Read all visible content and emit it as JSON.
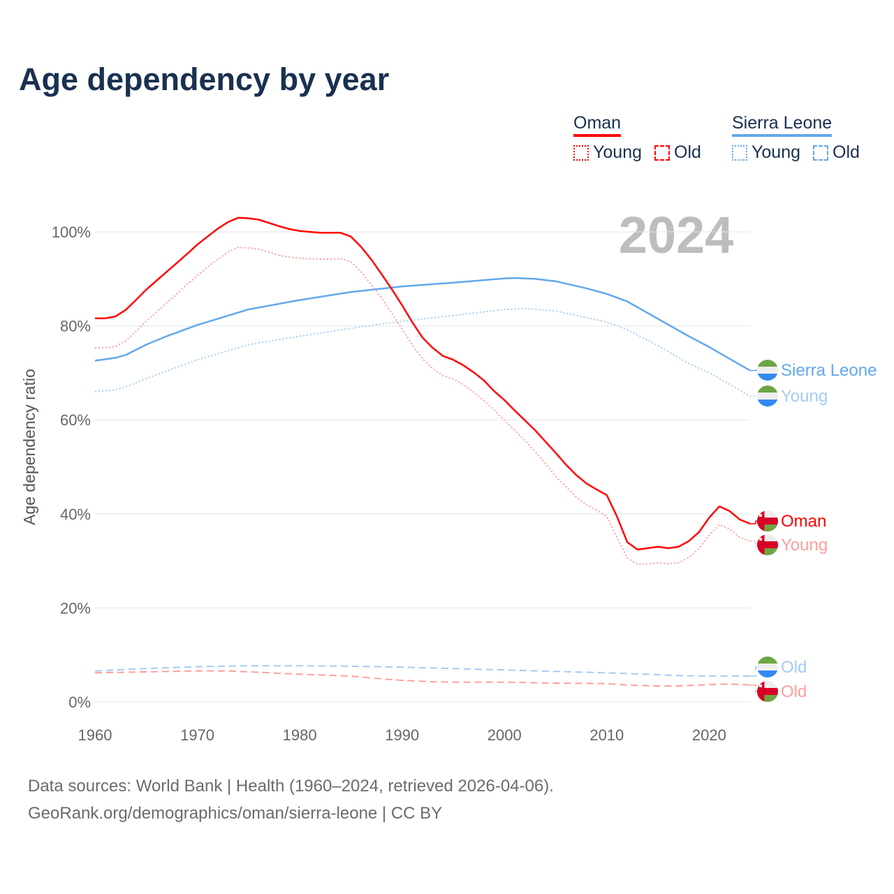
{
  "title": "Age dependency by year",
  "legend": {
    "groups": [
      {
        "name": "Oman",
        "color": "#ff0000",
        "items": [
          "Young",
          "Old"
        ]
      },
      {
        "name": "Sierra Leone",
        "color": "#62a8ec",
        "items": [
          "Young",
          "Old"
        ]
      }
    ]
  },
  "year_badge": "2024",
  "footer": {
    "line1": "Data sources: World Bank | Health (1960–2024, retrieved 2026-04-06).",
    "line2": "GeoRank.org/demographics/oman/sierra-leone | CC BY"
  },
  "chart_data": {
    "type": "line",
    "title": "Age dependency by year",
    "xlabel": "",
    "ylabel": "Age dependency ratio",
    "xlim": [
      1960,
      2024
    ],
    "ylim": [
      0,
      105
    ],
    "xticks": [
      "1960",
      "1970",
      "1980",
      "1990",
      "2000",
      "2010",
      "2020"
    ],
    "yticks": [
      "0%",
      "20%",
      "40%",
      "60%",
      "80%",
      "100%"
    ],
    "grid": true,
    "series": [
      {
        "name": "Sierra Leone",
        "end_label": "Sierra Leone",
        "color": "#62a8ec",
        "style": "solid",
        "width": 2.5,
        "x": [
          1960,
          1962,
          1963,
          1965,
          1967,
          1970,
          1975,
          1980,
          1985,
          1990,
          1995,
          2000,
          2001,
          2003,
          2005,
          2008,
          2010,
          2012,
          2015,
          2018,
          2020,
          2022,
          2024
        ],
        "y": [
          72.6,
          73.2,
          73.8,
          76.0,
          77.8,
          80.2,
          83.5,
          85.5,
          87.2,
          88.4,
          89.2,
          90.1,
          90.2,
          90.0,
          89.5,
          88.0,
          86.8,
          85.2,
          81.5,
          77.8,
          75.5,
          73.0,
          70.5
        ]
      },
      {
        "name": "Sierra Leone Young",
        "end_label": "Young",
        "color": "#a6cbf2",
        "style": "dotted",
        "width": 2,
        "x": [
          1960,
          1962,
          1963,
          1965,
          1970,
          1975,
          1980,
          1985,
          1990,
          1995,
          2000,
          2002,
          2005,
          2010,
          2012,
          2015,
          2018,
          2020,
          2022,
          2024
        ],
        "y": [
          66.0,
          66.4,
          67.0,
          68.8,
          72.8,
          76.0,
          77.8,
          79.5,
          81.0,
          82.2,
          83.5,
          83.7,
          83.2,
          80.8,
          79.2,
          75.8,
          72.0,
          70.0,
          67.6,
          65.0
        ]
      },
      {
        "name": "Sierra Leone Old",
        "end_label": "Old",
        "color": "#a6cbf2",
        "style": "dashed",
        "width": 2,
        "x": [
          1960,
          1965,
          1970,
          1975,
          1980,
          1985,
          1990,
          1995,
          2000,
          2005,
          2010,
          2015,
          2017,
          2020,
          2024
        ],
        "y": [
          6.6,
          7.1,
          7.5,
          7.7,
          7.7,
          7.6,
          7.4,
          7.1,
          6.8,
          6.5,
          6.2,
          5.8,
          5.6,
          5.5,
          5.5
        ]
      },
      {
        "name": "Oman",
        "end_label": "Oman",
        "color": "#ff0000",
        "style": "solid",
        "width": 2.5,
        "x": [
          1960,
          1961,
          1962,
          1963,
          1964,
          1965,
          1966,
          1967,
          1968,
          1969,
          1970,
          1971,
          1972,
          1973,
          1974,
          1975,
          1976,
          1977,
          1978,
          1979,
          1980,
          1981,
          1982,
          1983,
          1984,
          1985,
          1986,
          1987,
          1988,
          1989,
          1990,
          1991,
          1992,
          1993,
          1994,
          1995,
          1996,
          1997,
          1998,
          1999,
          2000,
          2001,
          2002,
          2003,
          2004,
          2005,
          2006,
          2007,
          2008,
          2009,
          2010,
          2011,
          2012,
          2013,
          2014,
          2015,
          2016,
          2017,
          2018,
          2019,
          2020,
          2021,
          2022,
          2023,
          2024
        ],
        "y": [
          81.6,
          81.6,
          82.0,
          83.4,
          85.5,
          87.7,
          89.6,
          91.5,
          93.4,
          95.3,
          97.3,
          99.0,
          100.7,
          102.1,
          103.0,
          102.9,
          102.6,
          101.9,
          101.2,
          100.6,
          100.2,
          100.0,
          99.8,
          99.8,
          99.8,
          99.0,
          96.8,
          94.1,
          91.0,
          87.8,
          84.4,
          80.8,
          77.5,
          75.3,
          73.6,
          72.8,
          71.6,
          70.1,
          68.4,
          66.1,
          64.2,
          62.0,
          59.9,
          57.8,
          55.4,
          53.0,
          50.5,
          48.3,
          46.5,
          45.2,
          44.0,
          39.4,
          34.0,
          32.4,
          32.7,
          33.0,
          32.7,
          33.0,
          34.2,
          36.1,
          39.2,
          41.6,
          40.6,
          38.8,
          37.9
        ]
      },
      {
        "name": "Oman Young",
        "end_label": "Young",
        "color": "#ff9d9d",
        "style": "dotted",
        "width": 2,
        "x": [
          1960,
          1961,
          1962,
          1963,
          1964,
          1965,
          1966,
          1967,
          1968,
          1969,
          1970,
          1971,
          1972,
          1973,
          1974,
          1975,
          1976,
          1977,
          1978,
          1979,
          1980,
          1981,
          1982,
          1983,
          1984,
          1985,
          1986,
          1987,
          1988,
          1989,
          1990,
          1991,
          1992,
          1993,
          1994,
          1995,
          1996,
          1997,
          1998,
          1999,
          2000,
          2001,
          2002,
          2003,
          2004,
          2005,
          2006,
          2007,
          2008,
          2009,
          2010,
          2011,
          2012,
          2013,
          2014,
          2015,
          2016,
          2017,
          2018,
          2019,
          2020,
          2021,
          2022,
          2023,
          2024
        ],
        "y": [
          75.3,
          75.4,
          75.6,
          76.8,
          78.8,
          81.0,
          82.9,
          84.9,
          86.8,
          88.8,
          90.7,
          92.5,
          94.2,
          95.7,
          96.7,
          96.6,
          96.3,
          95.7,
          95.0,
          94.6,
          94.4,
          94.3,
          94.2,
          94.2,
          94.3,
          93.6,
          91.5,
          88.8,
          85.9,
          82.7,
          79.3,
          76.0,
          73.0,
          70.9,
          69.4,
          68.7,
          67.5,
          65.9,
          64.1,
          62.1,
          59.9,
          57.8,
          55.6,
          53.3,
          50.8,
          48.0,
          45.8,
          43.6,
          42.0,
          40.8,
          39.5,
          35.0,
          30.6,
          29.3,
          29.4,
          29.6,
          29.4,
          29.6,
          30.7,
          32.6,
          35.5,
          37.7,
          36.8,
          35.0,
          34.2
        ]
      },
      {
        "name": "Oman Old",
        "end_label": "Old",
        "color": "#ff9d9d",
        "style": "dashed",
        "width": 2,
        "x": [
          1960,
          1965,
          1970,
          1973,
          1975,
          1980,
          1985,
          1988,
          1990,
          1993,
          1995,
          2000,
          2005,
          2010,
          2012,
          2013,
          2015,
          2017,
          2020,
          2022,
          2024
        ],
        "y": [
          6.2,
          6.4,
          6.6,
          6.6,
          6.4,
          5.9,
          5.5,
          4.9,
          4.6,
          4.3,
          4.2,
          4.2,
          4.0,
          3.9,
          3.6,
          3.5,
          3.4,
          3.4,
          3.7,
          3.8,
          3.6
        ]
      }
    ]
  }
}
